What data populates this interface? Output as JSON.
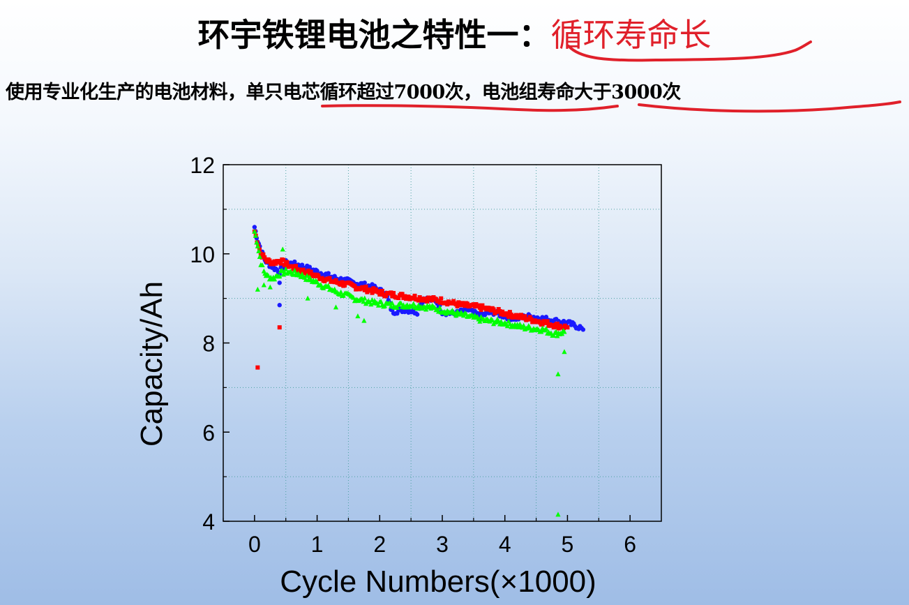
{
  "header": {
    "title_main": "环宇铁锂电池之特性一：",
    "title_highlight": "循环寿命长",
    "subtitle_part1": "使用专业化生产的电池材料，",
    "subtitle_part2": "单只电芯循环超过7000次",
    "subtitle_part3": "，",
    "subtitle_part4": "电池组寿命大于3000次"
  },
  "colors": {
    "highlight": "#e0202a",
    "series_red": "#ff0000",
    "series_blue": "#1a1aff",
    "series_green": "#00ff00"
  },
  "chart_data": {
    "type": "scatter",
    "title": "",
    "xlabel": "Cycle Numbers(×1000)",
    "ylabel": "Capacity/Ah",
    "xlim": [
      -0.5,
      6.5
    ],
    "ylim": [
      4,
      12
    ],
    "xticks": [
      0,
      1,
      2,
      3,
      4,
      5,
      6
    ],
    "yticks": [
      4,
      6,
      8,
      10,
      12
    ],
    "xtick_labels": [
      "0",
      "1",
      "2",
      "3",
      "4",
      "5",
      "6"
    ],
    "ytick_labels": [
      "4",
      "6",
      "8",
      "10",
      "12"
    ],
    "grid": true,
    "legend": "none",
    "series": [
      {
        "color": "#1a1aff",
        "marker": "circle",
        "x": [
          0.0,
          0.05,
          0.1,
          0.15,
          0.2,
          0.3,
          0.4,
          0.5,
          0.7,
          1.0,
          1.3,
          1.6,
          1.9,
          2.1,
          2.2,
          2.4,
          2.6,
          2.7,
          2.9,
          3.0,
          3.2,
          3.4,
          3.6,
          3.8,
          4.0,
          4.2,
          4.4,
          4.6,
          4.8,
          5.0,
          5.1,
          5.2,
          5.25
        ],
        "y": [
          10.6,
          10.3,
          10.1,
          9.9,
          9.8,
          9.7,
          9.6,
          9.8,
          9.75,
          9.6,
          9.45,
          9.35,
          9.25,
          9.1,
          8.7,
          8.75,
          8.7,
          9.0,
          8.95,
          8.7,
          8.65,
          8.75,
          8.6,
          8.7,
          8.6,
          8.55,
          8.6,
          8.55,
          8.5,
          8.45,
          8.4,
          8.35,
          8.3
        ],
        "outliers": [
          [
            0.4,
            8.85
          ],
          [
            0.4,
            9.35
          ]
        ]
      },
      {
        "color": "#ff0000",
        "marker": "square",
        "x": [
          0.0,
          0.1,
          0.2,
          0.3,
          0.4,
          0.6,
          0.9,
          1.2,
          1.5,
          1.8,
          2.1,
          2.4,
          2.7,
          3.0,
          3.3,
          3.6,
          3.9,
          4.2,
          4.5,
          4.8,
          5.0
        ],
        "y": [
          10.5,
          10.0,
          9.85,
          9.8,
          9.85,
          9.7,
          9.55,
          9.4,
          9.3,
          9.2,
          9.1,
          9.05,
          9.0,
          8.95,
          8.85,
          8.8,
          8.7,
          8.6,
          8.5,
          8.4,
          8.35
        ],
        "outliers": [
          [
            0.05,
            7.45
          ],
          [
            0.4,
            8.35
          ]
        ]
      },
      {
        "color": "#00ff00",
        "marker": "triangle",
        "x": [
          0.0,
          0.05,
          0.1,
          0.15,
          0.2,
          0.3,
          0.4,
          0.5,
          0.7,
          1.0,
          1.3,
          1.6,
          1.9,
          2.2,
          2.5,
          2.8,
          3.1,
          3.4,
          3.7,
          4.0,
          4.3,
          4.6,
          4.8,
          4.95
        ],
        "y": [
          10.5,
          10.2,
          9.8,
          9.6,
          9.5,
          9.45,
          9.55,
          9.6,
          9.55,
          9.35,
          9.15,
          9.0,
          8.9,
          8.85,
          8.85,
          8.8,
          8.7,
          8.6,
          8.5,
          8.45,
          8.35,
          8.3,
          8.2,
          8.25
        ],
        "outliers": [
          [
            0.05,
            9.2
          ],
          [
            0.15,
            9.3
          ],
          [
            0.25,
            9.25
          ],
          [
            0.45,
            10.1
          ],
          [
            0.85,
            9.0
          ],
          [
            1.3,
            8.8
          ],
          [
            1.65,
            8.6
          ],
          [
            1.75,
            8.5
          ],
          [
            4.85,
            7.3
          ],
          [
            4.95,
            7.8
          ],
          [
            4.85,
            4.15
          ]
        ]
      }
    ]
  }
}
